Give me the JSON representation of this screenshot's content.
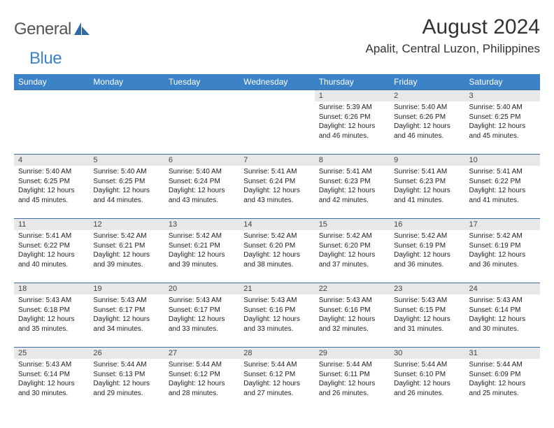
{
  "brand": {
    "word1": "General",
    "word2": "Blue"
  },
  "title": "August 2024",
  "location": "Apalit, Central Luzon, Philippines",
  "day_headers": [
    "Sunday",
    "Monday",
    "Tuesday",
    "Wednesday",
    "Thursday",
    "Friday",
    "Saturday"
  ],
  "style": {
    "header_bg": "#3b82c7",
    "header_fg": "#ffffff",
    "daynum_bg": "#e8e8e8",
    "row_border": "#3b6fa0",
    "page_bg": "#ffffff",
    "body_text": "#222222",
    "title_text": "#333333"
  },
  "weeks": [
    [
      null,
      null,
      null,
      null,
      {
        "n": "1",
        "sunrise": "5:39 AM",
        "sunset": "6:26 PM",
        "daylight": "12 hours and 46 minutes."
      },
      {
        "n": "2",
        "sunrise": "5:40 AM",
        "sunset": "6:26 PM",
        "daylight": "12 hours and 46 minutes."
      },
      {
        "n": "3",
        "sunrise": "5:40 AM",
        "sunset": "6:25 PM",
        "daylight": "12 hours and 45 minutes."
      }
    ],
    [
      {
        "n": "4",
        "sunrise": "5:40 AM",
        "sunset": "6:25 PM",
        "daylight": "12 hours and 45 minutes."
      },
      {
        "n": "5",
        "sunrise": "5:40 AM",
        "sunset": "6:25 PM",
        "daylight": "12 hours and 44 minutes."
      },
      {
        "n": "6",
        "sunrise": "5:40 AM",
        "sunset": "6:24 PM",
        "daylight": "12 hours and 43 minutes."
      },
      {
        "n": "7",
        "sunrise": "5:41 AM",
        "sunset": "6:24 PM",
        "daylight": "12 hours and 43 minutes."
      },
      {
        "n": "8",
        "sunrise": "5:41 AM",
        "sunset": "6:23 PM",
        "daylight": "12 hours and 42 minutes."
      },
      {
        "n": "9",
        "sunrise": "5:41 AM",
        "sunset": "6:23 PM",
        "daylight": "12 hours and 41 minutes."
      },
      {
        "n": "10",
        "sunrise": "5:41 AM",
        "sunset": "6:22 PM",
        "daylight": "12 hours and 41 minutes."
      }
    ],
    [
      {
        "n": "11",
        "sunrise": "5:41 AM",
        "sunset": "6:22 PM",
        "daylight": "12 hours and 40 minutes."
      },
      {
        "n": "12",
        "sunrise": "5:42 AM",
        "sunset": "6:21 PM",
        "daylight": "12 hours and 39 minutes."
      },
      {
        "n": "13",
        "sunrise": "5:42 AM",
        "sunset": "6:21 PM",
        "daylight": "12 hours and 39 minutes."
      },
      {
        "n": "14",
        "sunrise": "5:42 AM",
        "sunset": "6:20 PM",
        "daylight": "12 hours and 38 minutes."
      },
      {
        "n": "15",
        "sunrise": "5:42 AM",
        "sunset": "6:20 PM",
        "daylight": "12 hours and 37 minutes."
      },
      {
        "n": "16",
        "sunrise": "5:42 AM",
        "sunset": "6:19 PM",
        "daylight": "12 hours and 36 minutes."
      },
      {
        "n": "17",
        "sunrise": "5:42 AM",
        "sunset": "6:19 PM",
        "daylight": "12 hours and 36 minutes."
      }
    ],
    [
      {
        "n": "18",
        "sunrise": "5:43 AM",
        "sunset": "6:18 PM",
        "daylight": "12 hours and 35 minutes."
      },
      {
        "n": "19",
        "sunrise": "5:43 AM",
        "sunset": "6:17 PM",
        "daylight": "12 hours and 34 minutes."
      },
      {
        "n": "20",
        "sunrise": "5:43 AM",
        "sunset": "6:17 PM",
        "daylight": "12 hours and 33 minutes."
      },
      {
        "n": "21",
        "sunrise": "5:43 AM",
        "sunset": "6:16 PM",
        "daylight": "12 hours and 33 minutes."
      },
      {
        "n": "22",
        "sunrise": "5:43 AM",
        "sunset": "6:16 PM",
        "daylight": "12 hours and 32 minutes."
      },
      {
        "n": "23",
        "sunrise": "5:43 AM",
        "sunset": "6:15 PM",
        "daylight": "12 hours and 31 minutes."
      },
      {
        "n": "24",
        "sunrise": "5:43 AM",
        "sunset": "6:14 PM",
        "daylight": "12 hours and 30 minutes."
      }
    ],
    [
      {
        "n": "25",
        "sunrise": "5:43 AM",
        "sunset": "6:14 PM",
        "daylight": "12 hours and 30 minutes."
      },
      {
        "n": "26",
        "sunrise": "5:44 AM",
        "sunset": "6:13 PM",
        "daylight": "12 hours and 29 minutes."
      },
      {
        "n": "27",
        "sunrise": "5:44 AM",
        "sunset": "6:12 PM",
        "daylight": "12 hours and 28 minutes."
      },
      {
        "n": "28",
        "sunrise": "5:44 AM",
        "sunset": "6:12 PM",
        "daylight": "12 hours and 27 minutes."
      },
      {
        "n": "29",
        "sunrise": "5:44 AM",
        "sunset": "6:11 PM",
        "daylight": "12 hours and 26 minutes."
      },
      {
        "n": "30",
        "sunrise": "5:44 AM",
        "sunset": "6:10 PM",
        "daylight": "12 hours and 26 minutes."
      },
      {
        "n": "31",
        "sunrise": "5:44 AM",
        "sunset": "6:09 PM",
        "daylight": "12 hours and 25 minutes."
      }
    ]
  ],
  "labels": {
    "sunrise": "Sunrise: ",
    "sunset": "Sunset: ",
    "daylight": "Daylight: "
  }
}
